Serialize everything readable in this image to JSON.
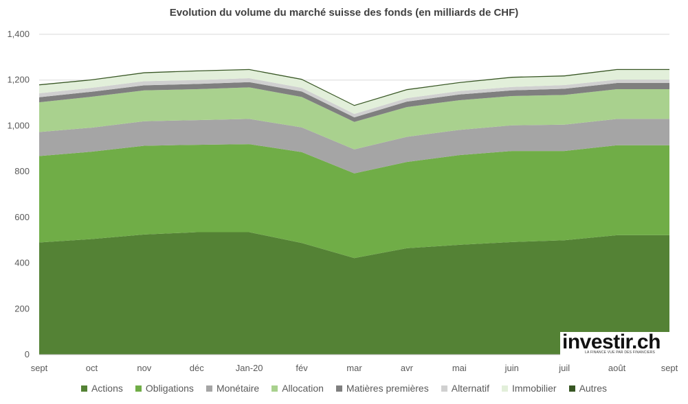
{
  "chart_data": {
    "type": "area",
    "stacked": true,
    "title": "Evolution du volume du marché suisse des fonds (en milliards de CHF)",
    "categories": [
      "sept",
      "oct",
      "nov",
      "déc",
      "Jan-20",
      "fév",
      "mar",
      "avr",
      "mai",
      "juin",
      "juil",
      "août",
      "sept"
    ],
    "ylim": [
      0,
      1400
    ],
    "yticks": [
      "0",
      "200",
      "400",
      "600",
      "800",
      "1,000",
      "1,200",
      "1,400"
    ],
    "yticks_values": [
      0,
      200,
      400,
      600,
      800,
      1000,
      1200,
      1400
    ],
    "grid": true,
    "legend_position": "bottom",
    "series": [
      {
        "name": "Actions",
        "color": "#548235",
        "values": [
          490,
          505,
          525,
          535,
          535,
          488,
          422,
          465,
          480,
          492,
          500,
          522,
          522
        ]
      },
      {
        "name": "Obligations",
        "color": "#70ad47",
        "values": [
          378,
          382,
          388,
          382,
          385,
          397,
          370,
          377,
          392,
          398,
          390,
          393,
          393
        ]
      },
      {
        "name": "Monétaire",
        "color": "#a5a5a5",
        "values": [
          105,
          105,
          107,
          108,
          110,
          108,
          105,
          110,
          110,
          112,
          115,
          115,
          115
        ]
      },
      {
        "name": "Allocation",
        "color": "#a9d18e",
        "values": [
          130,
          135,
          135,
          135,
          138,
          133,
          120,
          130,
          130,
          128,
          130,
          130,
          130
        ]
      },
      {
        "name": "Matières premières",
        "color": "#7f7f7f",
        "values": [
          22,
          22,
          22,
          23,
          23,
          24,
          20,
          24,
          25,
          25,
          27,
          27,
          27
        ]
      },
      {
        "name": "Alternatif",
        "color": "#d0d0d0",
        "values": [
          17,
          17,
          18,
          17,
          17,
          16,
          15,
          15,
          15,
          15,
          16,
          15,
          15
        ]
      },
      {
        "name": "Immobilier",
        "color": "#e2efda",
        "values": [
          35,
          33,
          35,
          38,
          36,
          35,
          35,
          35,
          35,
          40,
          38,
          42,
          42
        ]
      },
      {
        "name": "Autres",
        "color": "#375623",
        "values": [
          4,
          4,
          4,
          4,
          4,
          4,
          4,
          4,
          4,
          4,
          4,
          4,
          4
        ]
      }
    ]
  },
  "logo": {
    "text": "investir.ch",
    "tagline": "LA FINANCE VUE PAR DES FINANCIERS"
  }
}
